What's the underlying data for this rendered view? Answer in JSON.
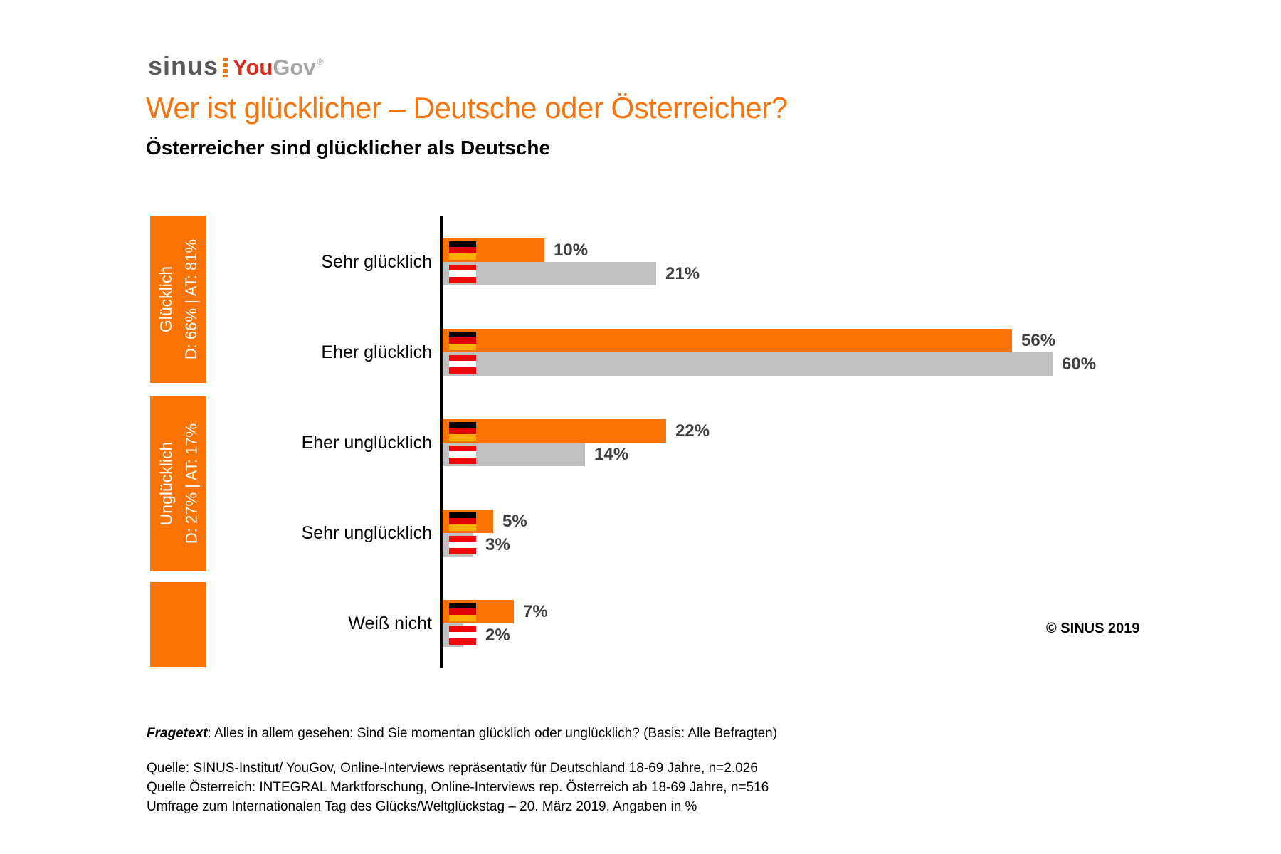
{
  "logo": {
    "sinus": "sinus",
    "you": "You",
    "gov": "Gov",
    "registered": "®",
    "sinus_color": "#58585A",
    "you_color": "#DF2A1D",
    "gov_color": "#A6A6A6",
    "divider_color": "#F97306"
  },
  "header": {
    "title": "Wer ist glücklicher – Deutsche oder Österreicher?",
    "title_color": "#F7730B",
    "subtitle": "Österreicher sind glücklicher als Deutsche"
  },
  "sidebar": {
    "color": "#FA7304",
    "bands": [
      {
        "line1": "Glücklich",
        "line2": "D: 66% | AT: 81%"
      },
      {
        "line1": "Unglücklich",
        "line2": "D: 27% | AT: 17%"
      },
      {
        "line1": "",
        "line2": ""
      }
    ]
  },
  "chart_data": {
    "type": "bar",
    "orientation": "horizontal",
    "unit": "%",
    "categories": [
      "Sehr glücklich",
      "Eher glücklich",
      "Eher unglücklich",
      "Sehr unglücklich",
      "Weiß nicht"
    ],
    "series": [
      {
        "name": "Deutschland",
        "flag": "germany-flag",
        "color": "#FA7304",
        "flag_colors": [
          "#000000",
          "#DD0505",
          "#FFAE07"
        ],
        "values": [
          10,
          56,
          22,
          5,
          7
        ]
      },
      {
        "name": "Österreich",
        "flag": "austria-flag",
        "color": "#C0C0C0",
        "flag_colors": [
          "#EF0A0A",
          "#FFFFFF",
          "#EF0A0A"
        ],
        "values": [
          21,
          60,
          14,
          3,
          2
        ]
      }
    ],
    "xlim": [
      0,
      62
    ],
    "grid": false,
    "legend": "none",
    "value_label_color": "#3F3F3F"
  },
  "copyright": "© SINUS 2019",
  "footer": {
    "fragetext_label": "Fragetext",
    "fragetext_rest": ": Alles in allem gesehen: Sind Sie momentan glücklich oder unglücklich? (Basis: Alle Befragten)",
    "source_lines": [
      "Quelle: SINUS-Institut/ YouGov, Online-Interviews repräsentativ für Deutschland 18-69 Jahre, n=2.026",
      "Quelle Österreich: INTEGRAL Marktforschung, Online-Interviews rep. Österreich ab 18-69 Jahre, n=516",
      "Umfrage zum Internationalen Tag des Glücks/Weltglückstag – 20. März 2019, Angaben in %"
    ]
  }
}
